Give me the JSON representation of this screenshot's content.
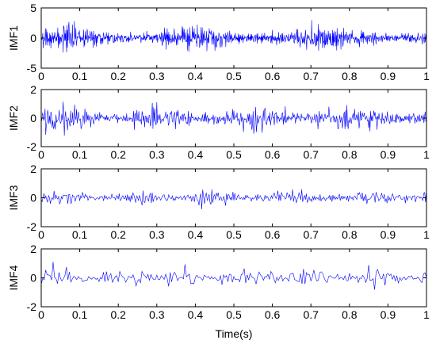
{
  "chart_data": [
    {
      "type": "line",
      "ylabel": "IMF1",
      "xlabel": "",
      "xlim": [
        0,
        1
      ],
      "ylim": [
        -5,
        5
      ],
      "xticks": [
        "0",
        "0.1",
        "0.2",
        "0.3",
        "0.4",
        "0.5",
        "0.6",
        "0.7",
        "0.8",
        "0.9",
        "1"
      ],
      "yticks": [
        "5",
        "0",
        "-5"
      ],
      "series_color": "#0000ff",
      "signal": {
        "samples": 1000,
        "typical_amplitude": 1.2,
        "peak_amplitude": 3.0
      }
    },
    {
      "type": "line",
      "ylabel": "IMF2",
      "xlabel": "",
      "xlim": [
        0,
        1
      ],
      "ylim": [
        -2,
        2
      ],
      "xticks": [
        "0",
        "0.1",
        "0.2",
        "0.3",
        "0.4",
        "0.5",
        "0.6",
        "0.7",
        "0.8",
        "0.9",
        "1"
      ],
      "yticks": [
        "2",
        "0",
        "-2"
      ],
      "series_color": "#0000ff",
      "signal": {
        "samples": 600,
        "typical_amplitude": 0.6,
        "peak_amplitude": 1.5
      }
    },
    {
      "type": "line",
      "ylabel": "IMF3",
      "xlabel": "",
      "xlim": [
        0,
        1
      ],
      "ylim": [
        -2,
        2
      ],
      "xticks": [
        "0",
        "0.1",
        "0.2",
        "0.3",
        "0.4",
        "0.5",
        "0.6",
        "0.7",
        "0.8",
        "0.9",
        "1"
      ],
      "yticks": [
        "2",
        "0",
        "-2"
      ],
      "series_color": "#0000ff",
      "signal": {
        "samples": 420,
        "typical_amplitude": 0.35,
        "peak_amplitude": 1.0
      }
    },
    {
      "type": "line",
      "ylabel": "IMF4",
      "xlabel": "Time(s)",
      "xlim": [
        0,
        1
      ],
      "ylim": [
        -2,
        2
      ],
      "xticks": [
        "0",
        "0.1",
        "0.2",
        "0.3",
        "0.4",
        "0.5",
        "0.6",
        "0.7",
        "0.8",
        "0.9",
        "1"
      ],
      "yticks": [
        "2",
        "0",
        "-2"
      ],
      "series_color": "#0000ff",
      "signal": {
        "samples": 260,
        "typical_amplitude": 0.45,
        "peak_amplitude": 1.1
      }
    }
  ]
}
